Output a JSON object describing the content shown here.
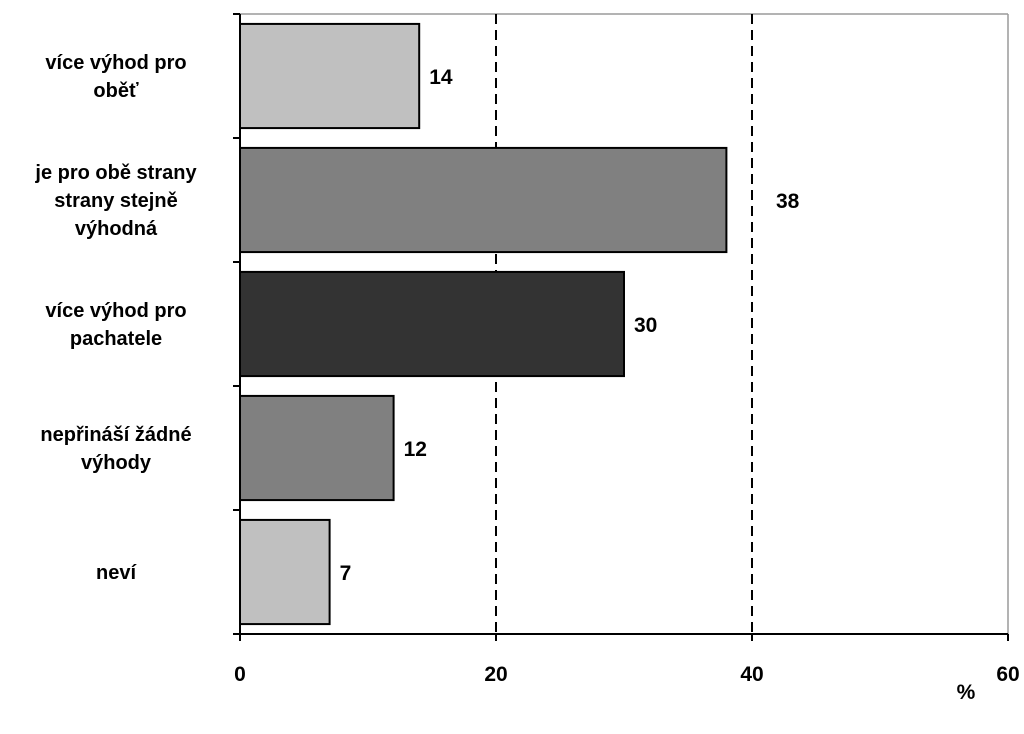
{
  "chart_data": {
    "type": "bar",
    "orientation": "horizontal",
    "categories": [
      [
        "více výhod pro",
        "oběť"
      ],
      [
        "je pro obě strany",
        "strany stejně",
        "výhodná"
      ],
      [
        "více výhod pro",
        "pachatele"
      ],
      [
        "nepřináší žádné",
        "výhody"
      ],
      [
        "neví"
      ]
    ],
    "values": [
      14,
      38,
      30,
      12,
      7
    ],
    "data_labels": [
      "14",
      "38",
      "30",
      "12",
      "7"
    ],
    "bar_colors": [
      "#c0c0c0",
      "#808080",
      "#333333",
      "#808080",
      "#c0c0c0"
    ],
    "xlim": [
      0,
      60
    ],
    "xticks": [
      0,
      20,
      40,
      60
    ],
    "xtick_labels": [
      "0",
      "20",
      "40",
      "60"
    ],
    "gridlines": [
      20,
      40
    ],
    "grid_style": "dashed",
    "unit_label": "%",
    "title": "",
    "xlabel": "",
    "ylabel": ""
  }
}
